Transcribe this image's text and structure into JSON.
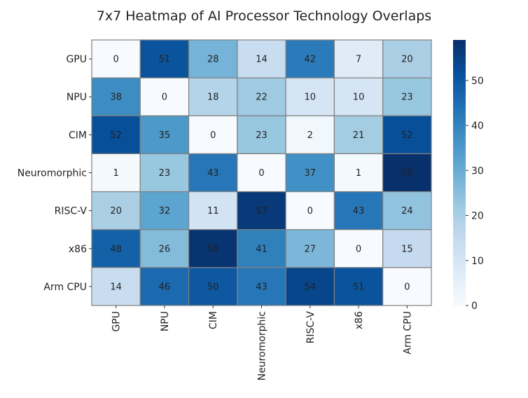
{
  "chart_data": {
    "type": "heatmap",
    "title": "7x7 Heatmap of AI Processor Technology Overlaps",
    "row_labels": [
      "GPU",
      "NPU",
      "CIM",
      "Neuromorphic",
      "RISC-V",
      "x86",
      "Arm CPU"
    ],
    "col_labels": [
      "GPU",
      "NPU",
      "CIM",
      "Neuromorphic",
      "RISC-V",
      "x86",
      "Arm CPU"
    ],
    "values": [
      [
        0,
        51,
        28,
        14,
        42,
        7,
        20
      ],
      [
        38,
        0,
        18,
        22,
        10,
        10,
        23
      ],
      [
        52,
        35,
        0,
        23,
        2,
        21,
        52
      ],
      [
        1,
        23,
        43,
        0,
        37,
        1,
        59
      ],
      [
        20,
        32,
        11,
        57,
        0,
        43,
        24
      ],
      [
        48,
        26,
        58,
        41,
        27,
        0,
        15
      ],
      [
        14,
        46,
        50,
        43,
        54,
        51,
        0
      ]
    ],
    "colormap": "Blues",
    "colorbar": {
      "range": [
        0,
        59
      ],
      "ticks": [
        0,
        10,
        20,
        30,
        40,
        50
      ]
    },
    "annotations": true,
    "cell_border_color": "#808080"
  }
}
